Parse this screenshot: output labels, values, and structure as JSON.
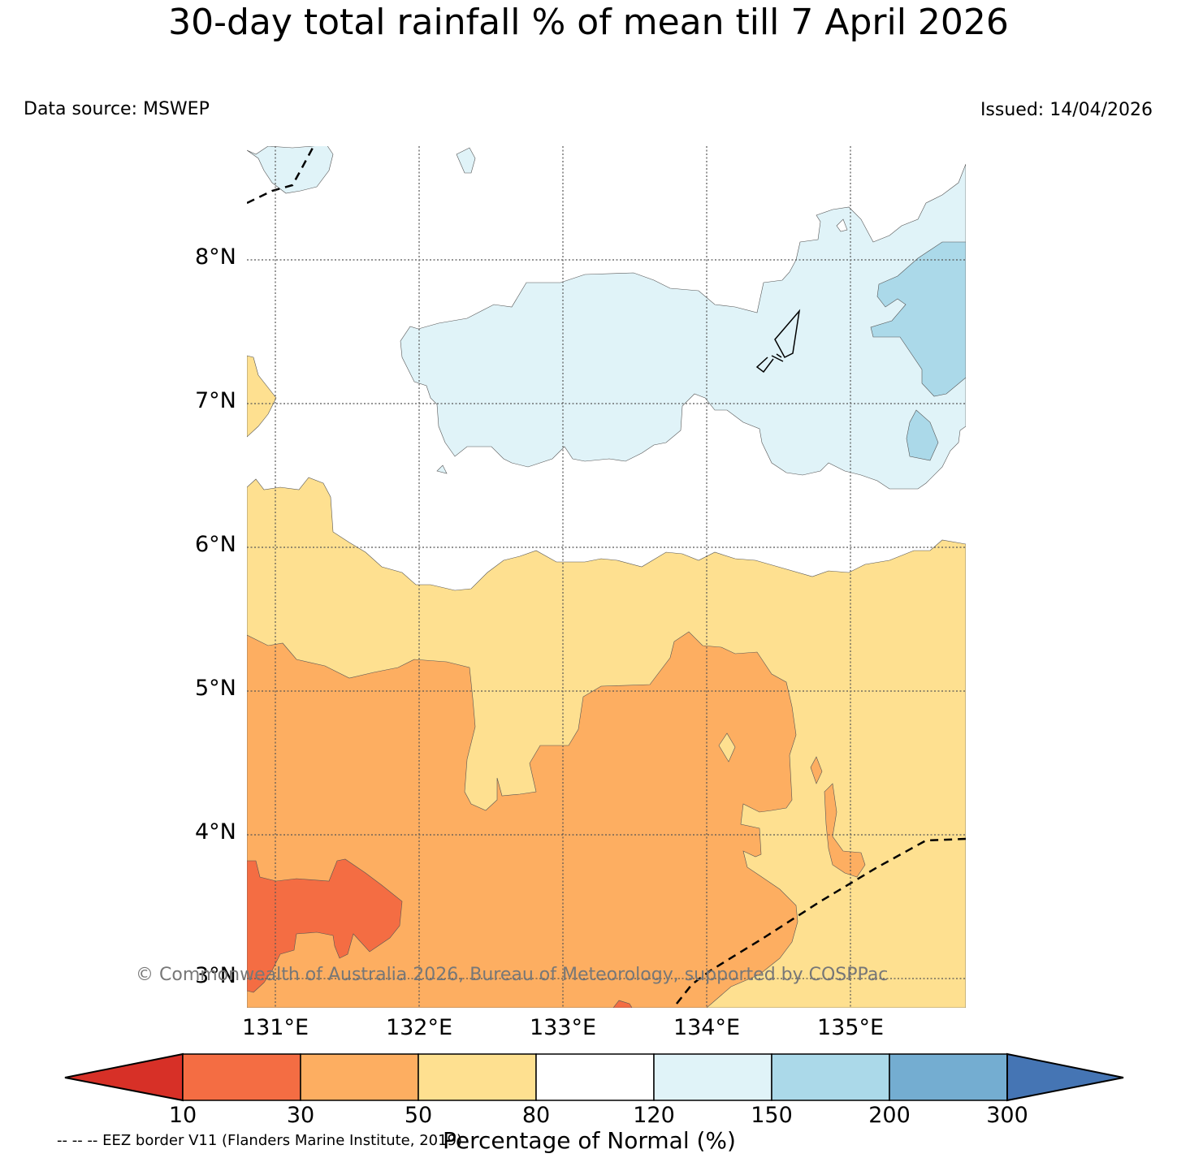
{
  "title": "30-day total rainfall % of mean till 7 April 2026",
  "data_source": "Data source: MSWEP",
  "issued": "Issued: 14/04/2026",
  "map": {
    "lat_labels": [
      "8°N",
      "7°N",
      "6°N",
      "5°N",
      "4°N",
      "3°N"
    ],
    "lon_labels": [
      "131°E",
      "132°E",
      "133°E",
      "134°E",
      "135°E"
    ],
    "copyright": "© Commonwealth of Australia 2026, Bureau of Meteorology, supported by COSPPac"
  },
  "colorbar": {
    "title": "Percentage of Normal (%)",
    "ticks": [
      "10",
      "30",
      "50",
      "80",
      "120",
      "150",
      "200",
      "300"
    ],
    "colors": [
      "#d73027",
      "#f46d43",
      "#fdae61",
      "#fee090",
      "#ffffff",
      "#e0f3f8",
      "#abd9e9",
      "#74add1",
      "#4575b4"
    ]
  },
  "eez_note": "-- -- -- EEZ border V11 (Flanders Marine Institute, 2019)"
}
